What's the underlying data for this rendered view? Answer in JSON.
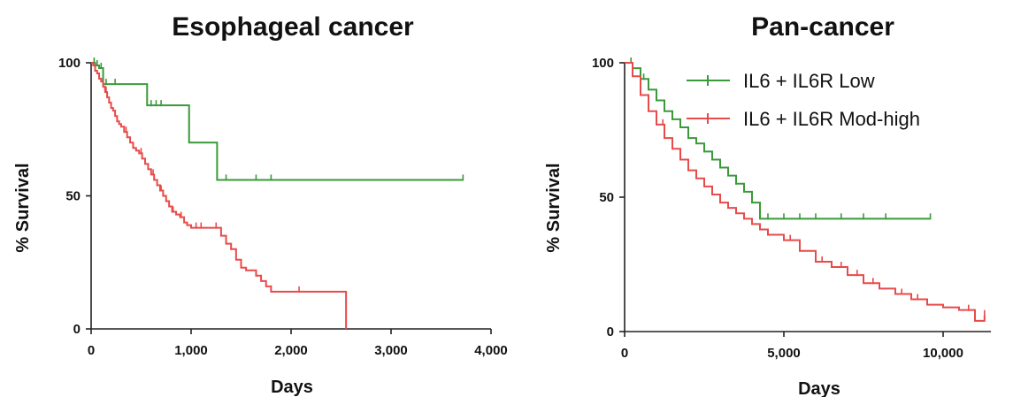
{
  "chart_data": [
    {
      "type": "line",
      "subtype": "kaplan-meier",
      "title": "Esophageal cancer",
      "xlabel": "Days",
      "ylabel": "% Survival",
      "xlim": [
        0,
        4000
      ],
      "ylim": [
        0,
        100
      ],
      "x_ticks": [
        0,
        1000,
        2000,
        3000,
        4000
      ],
      "x_tick_labels": [
        "0",
        "1,000",
        "2,000",
        "3,000",
        "4,000"
      ],
      "y_ticks": [
        0,
        50,
        100
      ],
      "y_tick_labels": [
        "0",
        "50",
        "100"
      ],
      "grid": false,
      "series": [
        {
          "color": "#3a9a3a",
          "x": [
            0,
            40,
            80,
            120,
            180,
            560,
            980,
            1260,
            3720
          ],
          "y": [
            100,
            99,
            98,
            92,
            92,
            84,
            70,
            56,
            56
          ],
          "censor_x": [
            30,
            60,
            100,
            150,
            240,
            600,
            650,
            700,
            1350,
            1650,
            1800,
            3720
          ]
        },
        {
          "color": "#e84a4a",
          "x": [
            0,
            20,
            40,
            60,
            80,
            100,
            120,
            140,
            160,
            180,
            200,
            220,
            240,
            260,
            280,
            300,
            330,
            360,
            390,
            420,
            450,
            480,
            510,
            540,
            570,
            600,
            630,
            660,
            690,
            720,
            750,
            780,
            810,
            850,
            890,
            930,
            960,
            1000,
            1250,
            1300,
            1350,
            1400,
            1450,
            1500,
            1550,
            1600,
            1650,
            1700,
            1750,
            1800,
            2540,
            2550
          ],
          "y": [
            100,
            99,
            97,
            96,
            94,
            93,
            91,
            89,
            87,
            85,
            83,
            82,
            80,
            78,
            77,
            76,
            74,
            72,
            70,
            68,
            67,
            66,
            64,
            62,
            60,
            58,
            56,
            54,
            52,
            50,
            48,
            46,
            44,
            43,
            42,
            40,
            39,
            38,
            38,
            35,
            32,
            30,
            26,
            23,
            22,
            22,
            20,
            18,
            16,
            14,
            14,
            0
          ],
          "censor_x": [
            150,
            350,
            500,
            620,
            700,
            820,
            900,
            1050,
            1100,
            1250,
            1400,
            1650,
            2080
          ]
        }
      ]
    },
    {
      "type": "line",
      "subtype": "kaplan-meier",
      "title": "Pan-cancer",
      "xlabel": "Days",
      "ylabel": "% Survival",
      "xlim": [
        0,
        11500
      ],
      "ylim": [
        0,
        100
      ],
      "x_ticks": [
        0,
        5000,
        10000
      ],
      "x_tick_labels": [
        "0",
        "5,000",
        "10,000"
      ],
      "y_ticks": [
        0,
        50,
        100
      ],
      "y_tick_labels": [
        "0",
        "50",
        "100"
      ],
      "grid": false,
      "legend_position": "top-right",
      "series": [
        {
          "name": "IL6 + IL6R Low",
          "color": "#3a9a3a",
          "x": [
            0,
            250,
            500,
            750,
            1000,
            1250,
            1500,
            1750,
            2000,
            2250,
            2500,
            2750,
            3000,
            3250,
            3500,
            3750,
            4000,
            4250,
            9600
          ],
          "y": [
            100,
            98,
            94,
            90,
            86,
            82,
            79,
            76,
            72,
            70,
            67,
            64,
            61,
            58,
            55,
            52,
            48,
            42,
            42
          ],
          "censor_x": [
            200,
            600,
            1000,
            1500,
            2000,
            2500,
            3000,
            3500,
            4500,
            5000,
            5500,
            6000,
            6800,
            7500,
            8200,
            9600
          ]
        },
        {
          "name": "IL6 + IL6R Mod-high",
          "color": "#e84a4a",
          "x": [
            0,
            250,
            500,
            750,
            1000,
            1250,
            1500,
            1750,
            2000,
            2250,
            2500,
            2750,
            3000,
            3250,
            3500,
            3750,
            4000,
            4250,
            4500,
            5000,
            5500,
            6000,
            6500,
            7000,
            7500,
            8000,
            8500,
            9000,
            9500,
            10000,
            10500,
            10800,
            11000,
            11300
          ],
          "y": [
            100,
            95,
            88,
            82,
            77,
            72,
            68,
            64,
            60,
            57,
            54,
            51,
            48,
            46,
            44,
            42,
            40,
            38,
            36,
            34,
            30,
            26,
            24,
            21,
            18,
            16,
            14,
            12,
            10,
            9,
            8,
            8,
            4,
            6
          ],
          "censor_x": [
            500,
            1200,
            2000,
            3000,
            4000,
            5200,
            6200,
            6800,
            7300,
            7800,
            8700,
            9200,
            10800,
            11300
          ]
        }
      ]
    }
  ]
}
